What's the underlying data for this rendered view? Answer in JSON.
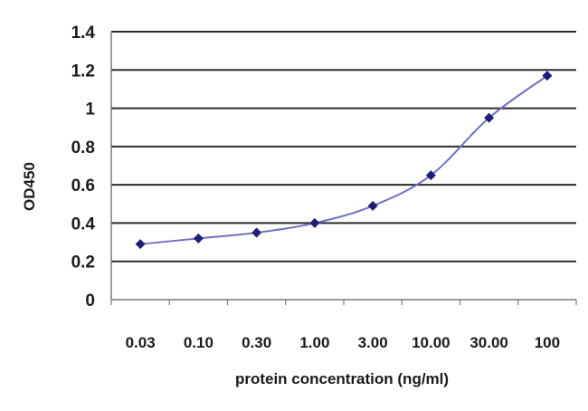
{
  "chart_data": {
    "type": "line",
    "categories": [
      "0.03",
      "0.10",
      "0.30",
      "1.00",
      "3.00",
      "10.00",
      "30.00",
      "100"
    ],
    "series": [
      {
        "values": [
          0.29,
          0.32,
          0.35,
          0.4,
          0.49,
          0.65,
          0.95,
          1.17
        ]
      }
    ],
    "xlabel": "protein concentration  (ng/ml)",
    "ylabel": "OD450",
    "ylim": [
      0,
      1.4
    ],
    "y_ticks": [
      "0",
      "0.2",
      "0.4",
      "0.6",
      "0.8",
      "1",
      "1.2",
      "1.4"
    ],
    "grid": true,
    "colors": {
      "series": "#7070c0",
      "marker": "#1f1f78",
      "gridline": "#2b2b2b"
    }
  }
}
